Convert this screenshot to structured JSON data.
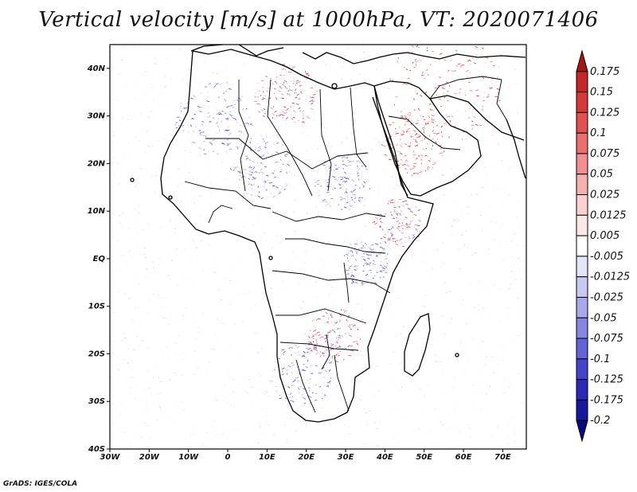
{
  "title": "Vertical velocity [m/s] at 1000hPa, VT: 2020071406",
  "credit": "GrADS: IGES/COLA",
  "map": {
    "lon_range": [
      -30,
      76
    ],
    "lat_range": [
      -40,
      45
    ],
    "lon_ticks": [
      "30W",
      "20W",
      "10W",
      "0",
      "10E",
      "20E",
      "30E",
      "40E",
      "50E",
      "60E",
      "70E"
    ],
    "lat_ticks": [
      "40S",
      "30S",
      "20S",
      "10S",
      "EQ",
      "10N",
      "20N",
      "30N",
      "40N"
    ]
  },
  "colorbar": {
    "levels": [
      "0.175",
      "0.15",
      "0.125",
      "0.1",
      "0.075",
      "0.05",
      "0.025",
      "0.0125",
      "0.005",
      "-0.005",
      "-0.0125",
      "-0.025",
      "-0.05",
      "-0.075",
      "-0.1",
      "-0.125",
      "-0.175",
      "-0.2"
    ],
    "colors": [
      "#a01818",
      "#c22828",
      "#d43a3a",
      "#e05252",
      "#e87070",
      "#f09090",
      "#f5b0b0",
      "#fad0d0",
      "#fde8e8",
      "#ffffff",
      "#e4e4f8",
      "#c8c8f0",
      "#a8a8ea",
      "#8686e0",
      "#6464d4",
      "#4444c8",
      "#2a2ab4",
      "#18189a",
      "#0a0a80"
    ]
  }
}
